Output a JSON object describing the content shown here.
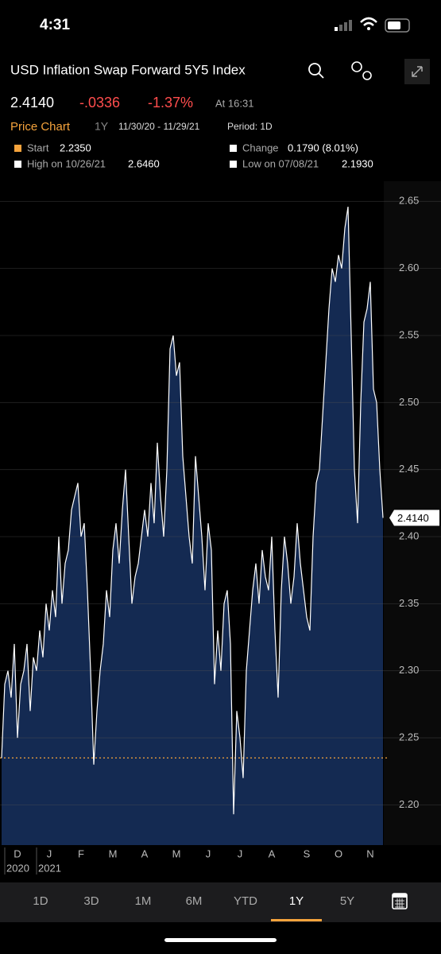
{
  "status_bar": {
    "time": "4:31"
  },
  "header": {
    "title": "USD Inflation Swap Forward 5Y5 Index",
    "last_price": "2.4140",
    "change": "-.0336",
    "change_pct": "-1.37%",
    "time": "At 16:31"
  },
  "chart_header": {
    "label": "Price Chart",
    "range": "1Y",
    "dates": "11/30/20 - 11/29/21",
    "period": "Period: 1D"
  },
  "stats": {
    "start_label": "Start",
    "start_value": "2.2350",
    "change_label": "Change",
    "change_value": "0.1790 (8.01%)",
    "high_label": "High on 10/26/21",
    "high_value": "2.6460",
    "low_label": "Low on 07/08/21",
    "low_value": "2.1930"
  },
  "tabs": [
    "1D",
    "3D",
    "1M",
    "6M",
    "YTD",
    "1Y",
    "5Y"
  ],
  "selected_tab": 5,
  "chart_data": {
    "type": "area",
    "color": "#ffffff",
    "fill": "#142a52",
    "categories": [
      null,
      null,
      null,
      null,
      null,
      "D",
      null,
      null,
      null,
      null,
      null,
      null,
      null,
      null,
      null,
      "J",
      null,
      null,
      null,
      null,
      null,
      null,
      null,
      null,
      null,
      "F",
      null,
      null,
      null,
      null,
      null,
      null,
      null,
      null,
      null,
      "M",
      null,
      null,
      null,
      null,
      null,
      null,
      null,
      null,
      null,
      "A",
      null,
      null,
      null,
      null,
      null,
      null,
      null,
      null,
      null,
      "M",
      null,
      null,
      null,
      null,
      null,
      null,
      null,
      null,
      null,
      "J",
      null,
      null,
      null,
      null,
      null,
      null,
      null,
      null,
      null,
      "J",
      null,
      null,
      null,
      null,
      null,
      null,
      null,
      null,
      null,
      "A",
      null,
      null,
      null,
      null,
      null,
      null,
      null,
      null,
      null,
      null,
      "S",
      null,
      null,
      null,
      null,
      null,
      null,
      null,
      null,
      null,
      "O",
      null,
      null,
      null,
      null,
      null,
      null,
      null,
      null,
      null,
      "N",
      null,
      null,
      null,
      null
    ],
    "year_labels": [
      "2020",
      "2021"
    ],
    "values": [
      2.235,
      2.29,
      2.3,
      2.28,
      2.32,
      2.25,
      2.29,
      2.3,
      2.32,
      2.27,
      2.31,
      2.3,
      2.33,
      2.31,
      2.35,
      2.33,
      2.36,
      2.34,
      2.4,
      2.35,
      2.38,
      2.39,
      2.42,
      2.43,
      2.44,
      2.4,
      2.41,
      2.36,
      2.3,
      2.23,
      2.27,
      2.3,
      2.32,
      2.36,
      2.34,
      2.39,
      2.41,
      2.38,
      2.42,
      2.45,
      2.4,
      2.35,
      2.37,
      2.38,
      2.4,
      2.42,
      2.4,
      2.44,
      2.41,
      2.47,
      2.43,
      2.4,
      2.45,
      2.54,
      2.55,
      2.52,
      2.53,
      2.46,
      2.43,
      2.4,
      2.38,
      2.46,
      2.43,
      2.4,
      2.36,
      2.41,
      2.39,
      2.29,
      2.33,
      2.3,
      2.35,
      2.36,
      2.32,
      2.193,
      2.27,
      2.25,
      2.22,
      2.3,
      2.33,
      2.36,
      2.38,
      2.35,
      2.39,
      2.37,
      2.36,
      2.4,
      2.33,
      2.28,
      2.36,
      2.4,
      2.38,
      2.35,
      2.37,
      2.41,
      2.38,
      2.36,
      2.34,
      2.33,
      2.4,
      2.44,
      2.45,
      2.49,
      2.53,
      2.57,
      2.6,
      2.59,
      2.61,
      2.6,
      2.63,
      2.646,
      2.55,
      2.45,
      2.41,
      2.5,
      2.56,
      2.57,
      2.59,
      2.51,
      2.5,
      2.45,
      2.414
    ],
    "ylim": [
      2.17,
      2.665
    ],
    "yticks": [
      {
        "value": 2.2,
        "label": "2.20"
      },
      2.25,
      {
        "value": 2.3,
        "label": "2.30"
      },
      2.35,
      {
        "value": 2.4,
        "label": "2.40"
      },
      2.45,
      {
        "value": 2.5,
        "label": "2.50"
      },
      2.55,
      {
        "value": 2.6,
        "label": "2.60"
      },
      2.65
    ],
    "grid": true
  }
}
